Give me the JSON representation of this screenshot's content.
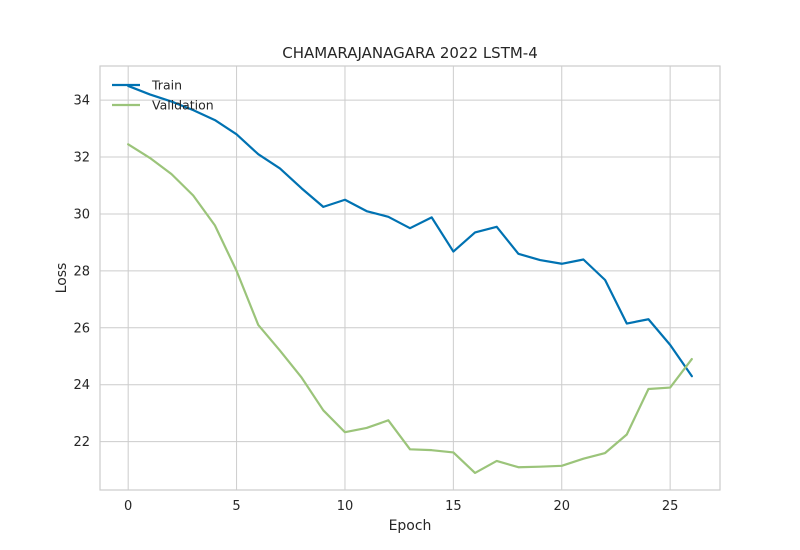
{
  "chart_data": {
    "type": "line",
    "title": "CHAMARAJANAGARA 2022 LSTM-4",
    "xlabel": "Epoch",
    "ylabel": "Loss",
    "xlim": [
      -1.3,
      27.3
    ],
    "ylim": [
      20.3,
      35.2
    ],
    "xticks": [
      0,
      5,
      10,
      15,
      20,
      25
    ],
    "yticks": [
      22,
      24,
      26,
      28,
      30,
      32,
      34
    ],
    "grid": true,
    "legend_position": "top-left",
    "x": [
      0,
      1,
      2,
      3,
      4,
      5,
      6,
      7,
      8,
      9,
      10,
      11,
      12,
      13,
      14,
      15,
      16,
      17,
      18,
      19,
      20,
      21,
      22,
      23,
      24,
      25,
      26
    ],
    "series": [
      {
        "name": "Train",
        "color": "#0072b2",
        "values": [
          34.5,
          34.2,
          33.95,
          33.65,
          33.3,
          32.8,
          32.1,
          31.6,
          30.9,
          30.25,
          30.5,
          30.1,
          29.9,
          29.5,
          29.88,
          28.68,
          29.35,
          29.55,
          28.6,
          28.38,
          28.25,
          28.4,
          27.68,
          26.15,
          26.3,
          25.4,
          24.3
        ]
      },
      {
        "name": "Validation",
        "color": "#9bc47a",
        "values": [
          32.45,
          31.97,
          31.4,
          30.65,
          29.6,
          28.0,
          26.1,
          25.2,
          24.25,
          23.1,
          22.33,
          22.48,
          22.75,
          21.73,
          21.7,
          21.62,
          20.9,
          21.32,
          21.1,
          21.12,
          21.15,
          21.4,
          21.6,
          22.25,
          23.85,
          23.9,
          24.9
        ]
      }
    ]
  }
}
